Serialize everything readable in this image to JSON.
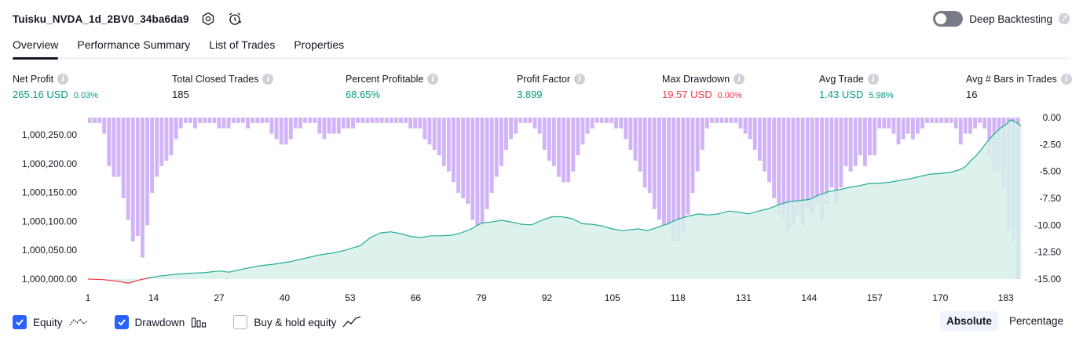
{
  "header": {
    "title": "Tuisku_NVDA_1d_2BV0_34ba6da9",
    "deep_backtesting_label": "Deep Backtesting"
  },
  "tabs": [
    {
      "label": "Overview"
    },
    {
      "label": "Performance Summary"
    },
    {
      "label": "List of Trades"
    },
    {
      "label": "Properties"
    }
  ],
  "stats": {
    "net_profit": {
      "label": "Net Profit",
      "value": "265.16 USD",
      "pct": "0.03%"
    },
    "total_closed_trades": {
      "label": "Total Closed Trades",
      "value": "185"
    },
    "percent_profitable": {
      "label": "Percent Profitable",
      "value": "68.65%"
    },
    "profit_factor": {
      "label": "Profit Factor",
      "value": "3.899"
    },
    "max_drawdown": {
      "label": "Max Drawdown",
      "value": "19.57 USD",
      "pct": "0.00%"
    },
    "avg_trade": {
      "label": "Avg Trade",
      "value": "1.43 USD",
      "pct": "5.98%"
    },
    "avg_bars": {
      "label": "Avg # Bars in Trades",
      "value": "16"
    }
  },
  "legend": {
    "equity_label": "Equity",
    "drawdown_label": "Drawdown",
    "buy_hold_label": "Buy & hold equity"
  },
  "mode": {
    "absolute_label": "Absolute",
    "percentage_label": "Percentage"
  },
  "colors": {
    "equity_line": "#22ab94",
    "equity_fill": "#d7f0ea",
    "equity_negative": "#f23645",
    "drawdown_bar": "#d1b3f7",
    "checkbox": "#2962ff"
  },
  "chart_data": {
    "type": "area",
    "x_tick_labels": [
      "1",
      "14",
      "27",
      "40",
      "53",
      "66",
      "79",
      "92",
      "105",
      "118",
      "131",
      "144",
      "157",
      "170",
      "183"
    ],
    "x_range": [
      1,
      186
    ],
    "left_axis": {
      "tick_labels": [
        "1,000,250.00",
        "1,000,200.00",
        "1,000,150.00",
        "1,000,100.00",
        "1,000,050.00",
        "1,000,000.00"
      ],
      "ylim": [
        1000000,
        1000280
      ]
    },
    "right_axis": {
      "tick_labels": [
        "0.00",
        "-2.50",
        "-5.00",
        "-7.50",
        "-10.00",
        "-12.50",
        "-15.00"
      ],
      "ylim": [
        -15,
        0
      ]
    },
    "series": [
      {
        "name": "Equity",
        "type": "area",
        "points": [
          [
            1,
            0
          ],
          [
            4,
            -1
          ],
          [
            7,
            -4
          ],
          [
            9,
            -7
          ],
          [
            11,
            -2
          ],
          [
            13,
            2
          ],
          [
            15,
            5
          ],
          [
            18,
            8
          ],
          [
            21,
            10
          ],
          [
            24,
            11
          ],
          [
            27,
            14
          ],
          [
            29,
            12
          ],
          [
            32,
            18
          ],
          [
            35,
            23
          ],
          [
            38,
            26
          ],
          [
            41,
            30
          ],
          [
            44,
            36
          ],
          [
            47,
            42
          ],
          [
            50,
            46
          ],
          [
            52,
            50
          ],
          [
            55,
            58
          ],
          [
            57,
            72
          ],
          [
            59,
            80
          ],
          [
            61,
            82
          ],
          [
            63,
            79
          ],
          [
            65,
            74
          ],
          [
            67,
            72
          ],
          [
            69,
            75
          ],
          [
            71,
            75
          ],
          [
            73,
            76
          ],
          [
            75,
            80
          ],
          [
            77,
            87
          ],
          [
            79,
            97
          ],
          [
            81,
            99
          ],
          [
            83,
            102
          ],
          [
            85,
            99
          ],
          [
            87,
            95
          ],
          [
            89,
            94
          ],
          [
            91,
            102
          ],
          [
            93,
            108
          ],
          [
            95,
            108
          ],
          [
            97,
            105
          ],
          [
            99,
            96
          ],
          [
            101,
            95
          ],
          [
            103,
            92
          ],
          [
            105,
            87
          ],
          [
            107,
            84
          ],
          [
            110,
            87
          ],
          [
            112,
            84
          ],
          [
            114,
            90
          ],
          [
            116,
            96
          ],
          [
            118,
            104
          ],
          [
            120,
            109
          ],
          [
            122,
            113
          ],
          [
            124,
            111
          ],
          [
            126,
            113
          ],
          [
            128,
            118
          ],
          [
            130,
            116
          ],
          [
            132,
            113
          ],
          [
            134,
            118
          ],
          [
            136,
            122
          ],
          [
            138,
            129
          ],
          [
            140,
            134
          ],
          [
            142,
            136
          ],
          [
            144,
            138
          ],
          [
            146,
            146
          ],
          [
            148,
            152
          ],
          [
            150,
            155
          ],
          [
            152,
            159
          ],
          [
            154,
            162
          ],
          [
            156,
            166
          ],
          [
            158,
            166
          ],
          [
            160,
            168
          ],
          [
            162,
            171
          ],
          [
            164,
            174
          ],
          [
            166,
            178
          ],
          [
            168,
            182
          ],
          [
            170,
            183
          ],
          [
            172,
            185
          ],
          [
            174,
            190
          ],
          [
            175,
            195
          ],
          [
            176,
            205
          ],
          [
            177,
            213
          ],
          [
            178,
            223
          ],
          [
            179,
            235
          ],
          [
            180,
            245
          ],
          [
            181,
            254
          ],
          [
            182,
            262
          ],
          [
            183,
            268
          ],
          [
            184,
            276
          ],
          [
            185,
            272
          ],
          [
            186,
            265
          ]
        ]
      },
      {
        "name": "Drawdown",
        "type": "bar",
        "values": [
          -0.5,
          -0.5,
          -0.5,
          -1.5,
          -4.5,
          -5.5,
          -5.5,
          -7.5,
          -9.5,
          -11.5,
          -11,
          -13,
          -10,
          -7,
          -5.5,
          -4.5,
          -4,
          -3.5,
          -2,
          -1,
          -0.5,
          -0.5,
          -1,
          -0.5,
          -0.5,
          -0.5,
          -0.5,
          -1,
          -1,
          -1,
          -0.5,
          -0.5,
          -0.5,
          -1,
          -0.5,
          -0.5,
          -0.5,
          -0.5,
          -1.5,
          -2,
          -2.5,
          -2.5,
          -2,
          -1,
          -1,
          -0.5,
          -0.5,
          -0.5,
          -1.5,
          -2,
          -1.5,
          -1.5,
          -1.5,
          -1,
          -1,
          -1,
          -0.5,
          -0.5,
          -0.5,
          -0.5,
          -0.5,
          -0.5,
          -0.5,
          -0.5,
          -0.5,
          -0.5,
          -0.5,
          -1,
          -1,
          -1,
          -2,
          -2.5,
          -3,
          -3.5,
          -4.5,
          -5,
          -6,
          -7,
          -7.5,
          -8,
          -9.5,
          -10,
          -10,
          -8.5,
          -7,
          -5.5,
          -4.5,
          -3,
          -2,
          -1.5,
          -0.5,
          -0.5,
          -0.5,
          -1,
          -1.5,
          -3,
          -4,
          -4.5,
          -5.5,
          -6,
          -6,
          -5,
          -3.5,
          -2.5,
          -1.5,
          -1,
          -0.5,
          -0.5,
          -0.5,
          -0.5,
          -1,
          -1,
          -2,
          -3,
          -4,
          -5,
          -6.5,
          -7,
          -8.5,
          -9.5,
          -10,
          -10,
          -11.5,
          -11.5,
          -10.5,
          -9,
          -7,
          -5,
          -3,
          -1,
          -0.5,
          -0.5,
          -0.5,
          -0.5,
          -0.5,
          -0.5,
          -1,
          -1.5,
          -2,
          -3,
          -4,
          -5,
          -6,
          -7.5,
          -9,
          -9.5,
          -10.5,
          -10,
          -9,
          -10,
          -8.5,
          -9,
          -8,
          -9.5,
          -8,
          -6.5,
          -8,
          -6.5,
          -4.5,
          -5,
          -4.5,
          -3.5,
          -4.5,
          -3.5,
          -3.5,
          -1,
          -1,
          -1,
          -1.5,
          -2.5,
          -2,
          -1.5,
          -2,
          -1.5,
          -1,
          -0.5,
          -0.5,
          -0.5,
          -0.5,
          -0.5,
          -0.5,
          -1,
          -2.5,
          -1.5,
          -1.5,
          -1,
          -0.5,
          -1,
          -3.5,
          -5,
          -5,
          -6.5,
          -10.5,
          -11.5,
          -15
        ]
      }
    ]
  }
}
